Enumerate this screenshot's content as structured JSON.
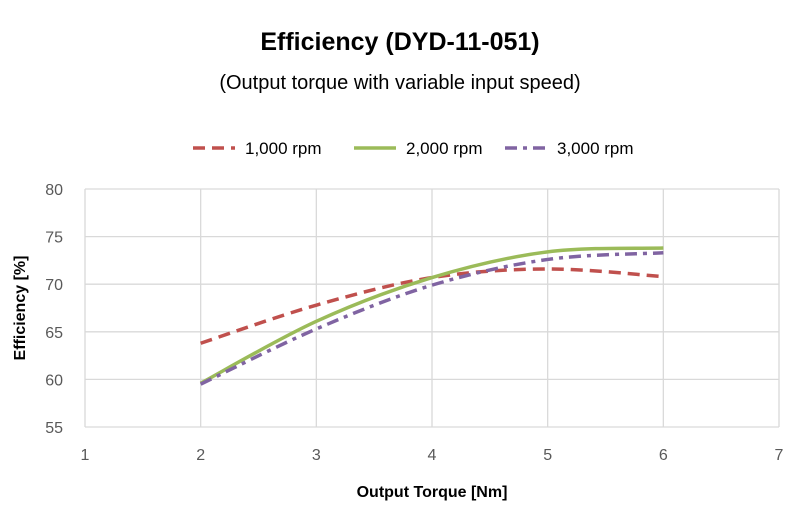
{
  "chart_data": {
    "type": "line",
    "title": "Efficiency (DYD-11-051)",
    "subtitle": "(Output torque with variable input speed)",
    "xlabel": "Output Torque [Nm]",
    "ylabel": "Efficiency [%]",
    "xlim": [
      1,
      7
    ],
    "ylim": [
      55,
      80
    ],
    "xticks": [
      "1",
      "2",
      "3",
      "4",
      "5",
      "6",
      "7"
    ],
    "yticks": [
      "55",
      "60",
      "65",
      "70",
      "75",
      "80"
    ],
    "grid": true,
    "legend_position": "top",
    "x": [
      2,
      3,
      4,
      5,
      6
    ],
    "series": [
      {
        "name": "1,000 rpm",
        "color": "#C0504D",
        "dash": "dashed",
        "values": [
          63.8,
          67.8,
          70.7,
          71.6,
          70.8
        ]
      },
      {
        "name": "2,000 rpm",
        "color": "#9BBB59",
        "dash": "solid",
        "values": [
          59.6,
          66.1,
          70.7,
          73.4,
          73.8
        ]
      },
      {
        "name": "3,000 rpm",
        "color": "#8064A2",
        "dash": "dashdot",
        "values": [
          59.5,
          65.3,
          69.9,
          72.6,
          73.3
        ]
      }
    ]
  }
}
